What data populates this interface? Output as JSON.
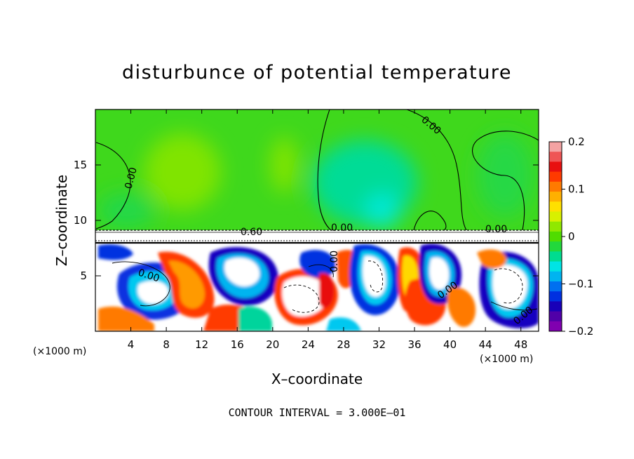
{
  "chart_data": {
    "type": "heatmap",
    "title": "disturbunce of potential temperature",
    "xlabel": "X–coordinate",
    "ylabel": "Z–coordinate",
    "x_unit_label": "(×1000 m)",
    "x_unit_label_right": "(×1000 m)",
    "xlim": [
      0,
      50
    ],
    "ylim": [
      0,
      20
    ],
    "xticks": [
      4,
      8,
      12,
      16,
      20,
      24,
      28,
      32,
      36,
      40,
      44,
      48
    ],
    "xtick_labels": [
      "4",
      "8",
      "12",
      "16",
      "20",
      "24",
      "28",
      "32",
      "36",
      "40",
      "44",
      "48"
    ],
    "yticks": [
      5,
      10,
      15
    ],
    "ytick_labels": [
      "5",
      "10",
      "15"
    ],
    "colorbar": {
      "range": [
        -0.2,
        0.2
      ],
      "ticks": [
        0.2,
        0.1,
        0,
        -0.1,
        -0.2
      ],
      "tick_labels": [
        "0.2",
        "0.1",
        "0",
        "−0.1",
        "−0.2"
      ],
      "colors_top_to_bottom": [
        "#f4a3a3",
        "#ef5555",
        "#e81010",
        "#ff3a00",
        "#ff7a00",
        "#ffb000",
        "#ffe000",
        "#d8f000",
        "#90e800",
        "#50dc00",
        "#22d83c",
        "#00dc90",
        "#00e4e4",
        "#00b4f0",
        "#0070f0",
        "#0030e0",
        "#1800b8",
        "#5000a8",
        "#8000b0"
      ]
    },
    "contour_labels": [
      "0.00",
      "0.00",
      "0.60",
      "0.00",
      "0.00",
      "0.00",
      "0.00",
      "0.00",
      "0.00"
    ],
    "footer": "CONTOUR INTERVAL = 3.000E–01"
  }
}
